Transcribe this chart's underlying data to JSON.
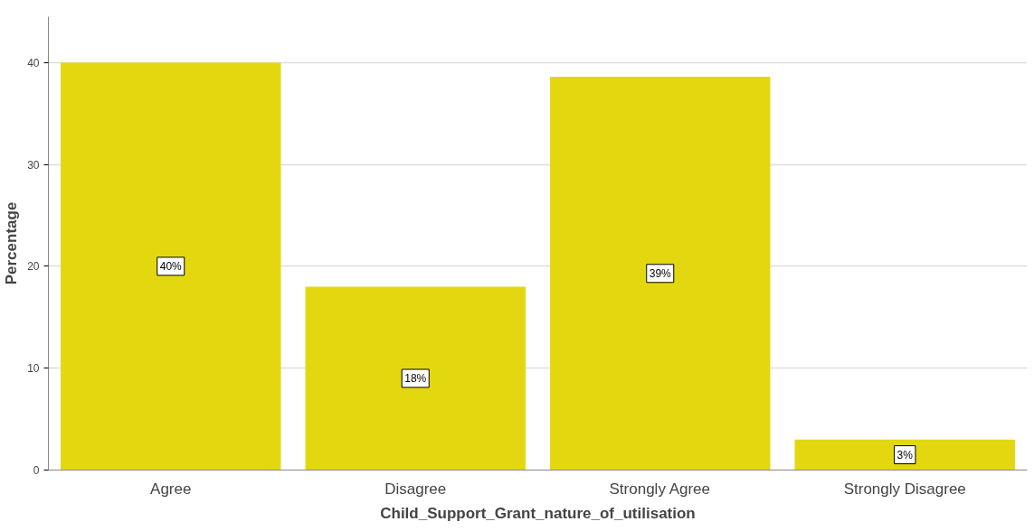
{
  "chart_data": {
    "type": "bar",
    "xlabel": "Child_Support_Grant_nature_of_utilisation",
    "ylabel": "Percentage",
    "categories": [
      "Agree",
      "Disagree",
      "Strongly Agree",
      "Strongly Disagree"
    ],
    "values": [
      40,
      18,
      38.6,
      3
    ],
    "color": "#e3d80f",
    "value_labels": [
      "40%",
      "18%",
      "39%",
      "3%"
    ],
    "ylim": [
      0,
      44.5
    ],
    "yticks": [
      0,
      10,
      20,
      30,
      40
    ],
    "grid": "y"
  }
}
